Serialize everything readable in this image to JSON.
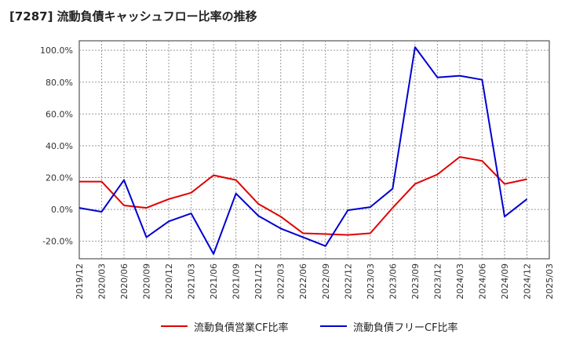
{
  "title": "[7287]  流動負債キャッシュフロー比率の推移",
  "colors": {
    "operating": "#e00000",
    "free": "#0000d0",
    "grid": "#999999",
    "axis": "#333333"
  },
  "chart_data": {
    "type": "line",
    "title": "[7287]  流動負債キャッシュフロー比率の推移",
    "x_ticks": [
      "2019/12",
      "2020/03",
      "2020/06",
      "2020/09",
      "2020/12",
      "2021/03",
      "2021/06",
      "2021/09",
      "2021/12",
      "2022/03",
      "2022/06",
      "2022/09",
      "2022/12",
      "2023/03",
      "2023/06",
      "2023/09",
      "2023/12",
      "2024/03",
      "2024/06",
      "2024/09",
      "2024/12",
      "2025/03"
    ],
    "y_ticks": [
      "-20.0%",
      "0.0%",
      "20.0%",
      "40.0%",
      "60.0%",
      "80.0%",
      "100.0%"
    ],
    "y_tick_values": [
      -20,
      0,
      20,
      40,
      60,
      80,
      100
    ],
    "ylim": [
      -31,
      106
    ],
    "grid": true,
    "legend_position": "bottom",
    "x": [
      "2019/12",
      "2020/03",
      "2020/06",
      "2020/09",
      "2020/12",
      "2021/03",
      "2021/06",
      "2021/09",
      "2021/12",
      "2022/03",
      "2022/06",
      "2022/09",
      "2022/12",
      "2023/03",
      "2023/06",
      "2023/09",
      "2023/12",
      "2024/03",
      "2024/06",
      "2024/09",
      "2024/12"
    ],
    "series": [
      {
        "name": "流動負債営業CF比率",
        "values": [
          17.5,
          17.5,
          2.5,
          1.0,
          6.5,
          10.5,
          21.5,
          18.5,
          3.5,
          -4.5,
          -15.0,
          -15.5,
          -16.0,
          -15.0,
          1.0,
          16.0,
          22.0,
          33.0,
          30.5,
          16.0,
          19.0
        ]
      },
      {
        "name": "流動負債フリーCF比率",
        "values": [
          1.0,
          -1.5,
          18.5,
          -17.5,
          -7.5,
          -2.5,
          -28.0,
          10.0,
          -4.0,
          -12.0,
          -17.5,
          -23.0,
          -0.5,
          1.5,
          13.0,
          102.0,
          83.0,
          84.0,
          81.5,
          -4.5,
          6.5
        ]
      }
    ]
  }
}
